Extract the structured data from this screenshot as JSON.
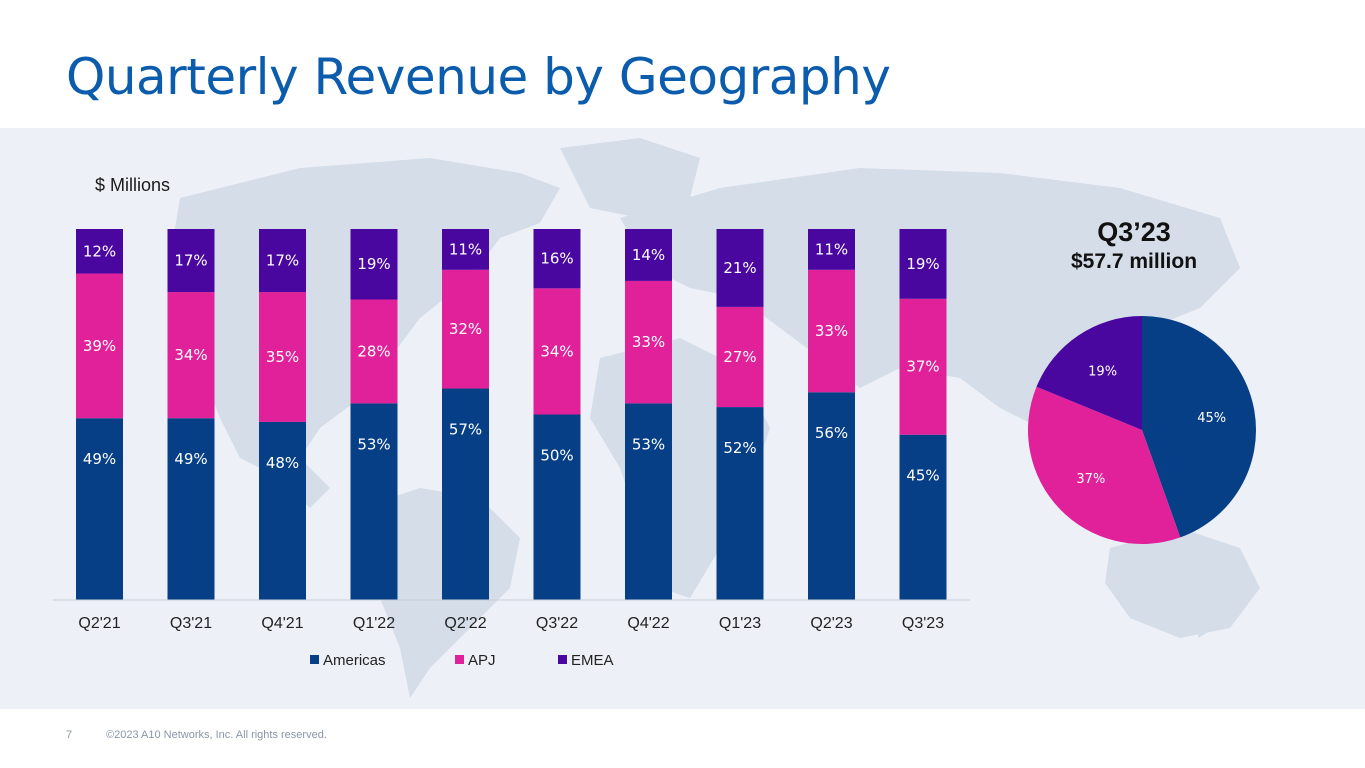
{
  "slide": {
    "title": "Quarterly Revenue by Geography",
    "page_number": "7",
    "copyright": "©2023 A10 Networks, Inc. All rights reserved."
  },
  "colors": {
    "title": "#0b5cad",
    "americas": "#073f87",
    "apj": "#e0219a",
    "emea": "#4a07a0",
    "panel": "#edf1f7",
    "map": "#d4dde8"
  },
  "chart_data": [
    {
      "type": "bar",
      "stacked": true,
      "percent": true,
      "units_label": "$ Millions",
      "categories": [
        "Q2'21",
        "Q3'21",
        "Q4'21",
        "Q1'22",
        "Q2'22",
        "Q3'22",
        "Q4'22",
        "Q1'23",
        "Q2'23",
        "Q3'23"
      ],
      "series": [
        {
          "name": "Americas",
          "color": "#073f87",
          "values": [
            49,
            49,
            48,
            53,
            57,
            50,
            53,
            52,
            56,
            45
          ]
        },
        {
          "name": "APJ",
          "color": "#e0219a",
          "values": [
            39,
            34,
            35,
            28,
            32,
            34,
            33,
            27,
            33,
            37
          ]
        },
        {
          "name": "EMEA",
          "color": "#4a07a0",
          "values": [
            12,
            17,
            17,
            19,
            11,
            16,
            14,
            21,
            11,
            19
          ]
        }
      ],
      "legend": [
        "Americas",
        "APJ",
        "EMEA"
      ],
      "legend_position": "bottom",
      "ylim": [
        0,
        100
      ],
      "grid": false
    },
    {
      "type": "pie",
      "title": "Q3’23",
      "subtitle": "$57.7 million",
      "slices": [
        {
          "name": "Americas",
          "value": 45,
          "label": "45%",
          "color": "#073f87"
        },
        {
          "name": "APJ",
          "value": 37,
          "label": "37%",
          "color": "#e0219a"
        },
        {
          "name": "EMEA",
          "value": 19,
          "label": "19%",
          "color": "#4a07a0"
        }
      ]
    }
  ]
}
